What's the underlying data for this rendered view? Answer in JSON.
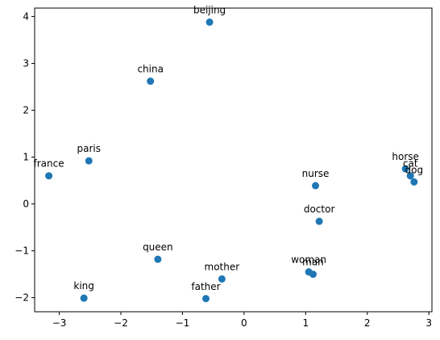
{
  "colors": {
    "point": "#1f77b4",
    "axis": "#000000",
    "background": "#ffffff"
  },
  "chart_data": {
    "type": "scatter",
    "title": "",
    "xlabel": "",
    "ylabel": "",
    "xlim": [
      -3.4,
      3.05
    ],
    "ylim": [
      -2.3,
      4.18
    ],
    "xticks": [
      -3,
      -2,
      -1,
      0,
      1,
      2,
      3
    ],
    "yticks": [
      -2,
      -1,
      0,
      1,
      2,
      3,
      4
    ],
    "xtick_labels": [
      "−3",
      "−2",
      "−1",
      "0",
      "1",
      "2",
      "3"
    ],
    "ytick_labels": [
      "−2",
      "−1",
      "0",
      "1",
      "2",
      "3",
      "4"
    ],
    "grid": false,
    "marker": "circle",
    "points": [
      {
        "label": "beijing",
        "x": -0.56,
        "y": 3.88
      },
      {
        "label": "china",
        "x": -1.52,
        "y": 2.62
      },
      {
        "label": "paris",
        "x": -2.52,
        "y": 0.92
      },
      {
        "label": "france",
        "x": -3.17,
        "y": 0.6
      },
      {
        "label": "horse",
        "x": 2.62,
        "y": 0.75
      },
      {
        "label": "cat",
        "x": 2.7,
        "y": 0.6
      },
      {
        "label": "dog",
        "x": 2.76,
        "y": 0.47
      },
      {
        "label": "nurse",
        "x": 1.16,
        "y": 0.39
      },
      {
        "label": "doctor",
        "x": 1.22,
        "y": -0.37
      },
      {
        "label": "queen",
        "x": -1.4,
        "y": -1.18
      },
      {
        "label": "mother",
        "x": -0.36,
        "y": -1.6
      },
      {
        "label": "woman",
        "x": 1.05,
        "y": -1.45
      },
      {
        "label": "man",
        "x": 1.12,
        "y": -1.5
      },
      {
        "label": "king",
        "x": -2.6,
        "y": -2.01
      },
      {
        "label": "father",
        "x": -0.62,
        "y": -2.02
      }
    ]
  }
}
